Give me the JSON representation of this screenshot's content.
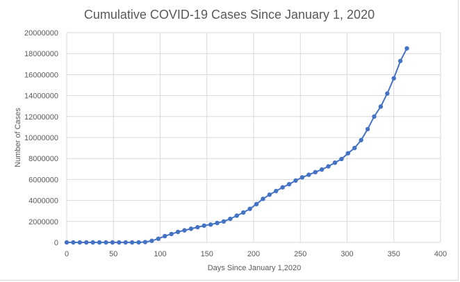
{
  "chart_data": {
    "type": "scatter",
    "title": "Cumulative COVID-19 Cases Since January 1, 2020",
    "xlabel": "Days Since January 1,2020",
    "ylabel": "Number of Cases",
    "xlim": [
      0,
      400
    ],
    "ylim": [
      0,
      20000000
    ],
    "x_ticks": [
      "0",
      "50",
      "100",
      "150",
      "200",
      "250",
      "300",
      "350",
      "400"
    ],
    "y_ticks": [
      "0",
      "2000000",
      "4000000",
      "6000000",
      "8000000",
      "10000000",
      "12000000",
      "14000000",
      "16000000",
      "18000000",
      "20000000"
    ],
    "grid": true,
    "legend": "none",
    "series_color": "#4472C4",
    "series": [
      {
        "x": [
          0,
          7,
          14,
          21,
          28,
          35,
          42,
          49,
          56,
          63,
          70,
          77,
          84,
          91,
          98,
          105,
          112,
          119,
          126,
          133,
          140,
          147,
          154,
          161,
          168,
          175,
          182,
          189,
          196,
          203,
          210,
          217,
          224,
          231,
          238,
          245,
          252,
          259,
          266,
          273,
          280,
          287,
          294,
          301,
          308,
          315,
          322,
          329,
          336,
          343,
          350,
          357,
          364
        ],
        "y": [
          0,
          0,
          0,
          0,
          0,
          0,
          0,
          0,
          0,
          0,
          0,
          5000,
          30000,
          150000,
          350000,
          600000,
          800000,
          1000000,
          1150000,
          1300000,
          1450000,
          1600000,
          1700000,
          1850000,
          2000000,
          2250000,
          2550000,
          2850000,
          3200000,
          3650000,
          4150000,
          4550000,
          4900000,
          5250000,
          5550000,
          5900000,
          6200000,
          6450000,
          6700000,
          6950000,
          7250000,
          7600000,
          7950000,
          8500000,
          9000000,
          9750000,
          10800000,
          12000000,
          12950000,
          14200000,
          15650000,
          17300000,
          18500000
        ]
      }
    ]
  }
}
